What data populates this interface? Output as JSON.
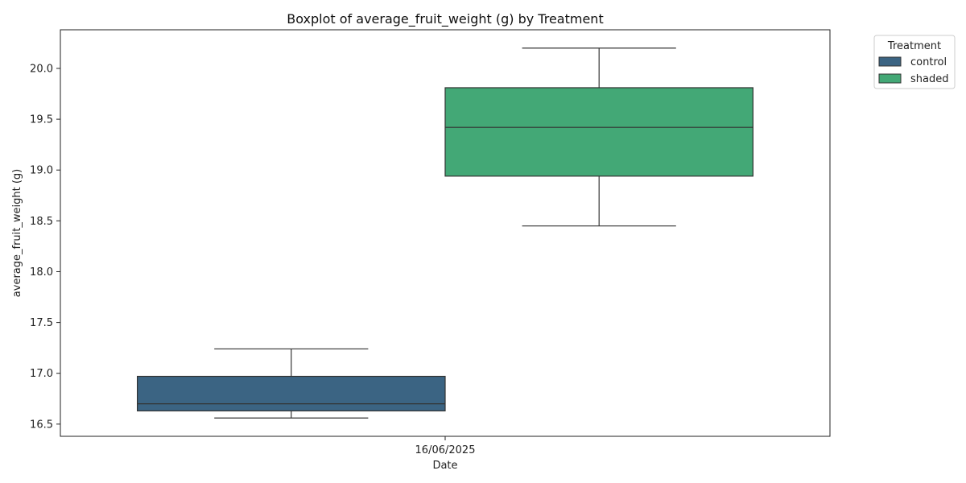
{
  "chart_data": {
    "type": "boxplot",
    "title": "Boxplot of average_fruit_weight (g) by Treatment",
    "xlabel": "Date",
    "ylabel": "average_fruit_weight (g)",
    "categories": [
      "16/06/2025"
    ],
    "ylim": [
      16.38,
      20.38
    ],
    "yticks": [
      16.5,
      17.0,
      17.5,
      18.0,
      18.5,
      19.0,
      19.5,
      20.0
    ],
    "ytick_labels": [
      "16.5",
      "17.0",
      "17.5",
      "18.0",
      "18.5",
      "19.0",
      "19.5",
      "20.0"
    ],
    "legend": {
      "title": "Treatment",
      "placement": "outside-top-right"
    },
    "series": [
      {
        "name": "control",
        "color": "#3b6483",
        "whisker_low": 16.56,
        "q1": 16.63,
        "median": 16.7,
        "q3": 16.97,
        "whisker_high": 17.24
      },
      {
        "name": "shaded",
        "color": "#43a876",
        "whisker_low": 18.45,
        "q1": 18.94,
        "median": 19.42,
        "q3": 19.81,
        "whisker_high": 20.2
      }
    ]
  }
}
